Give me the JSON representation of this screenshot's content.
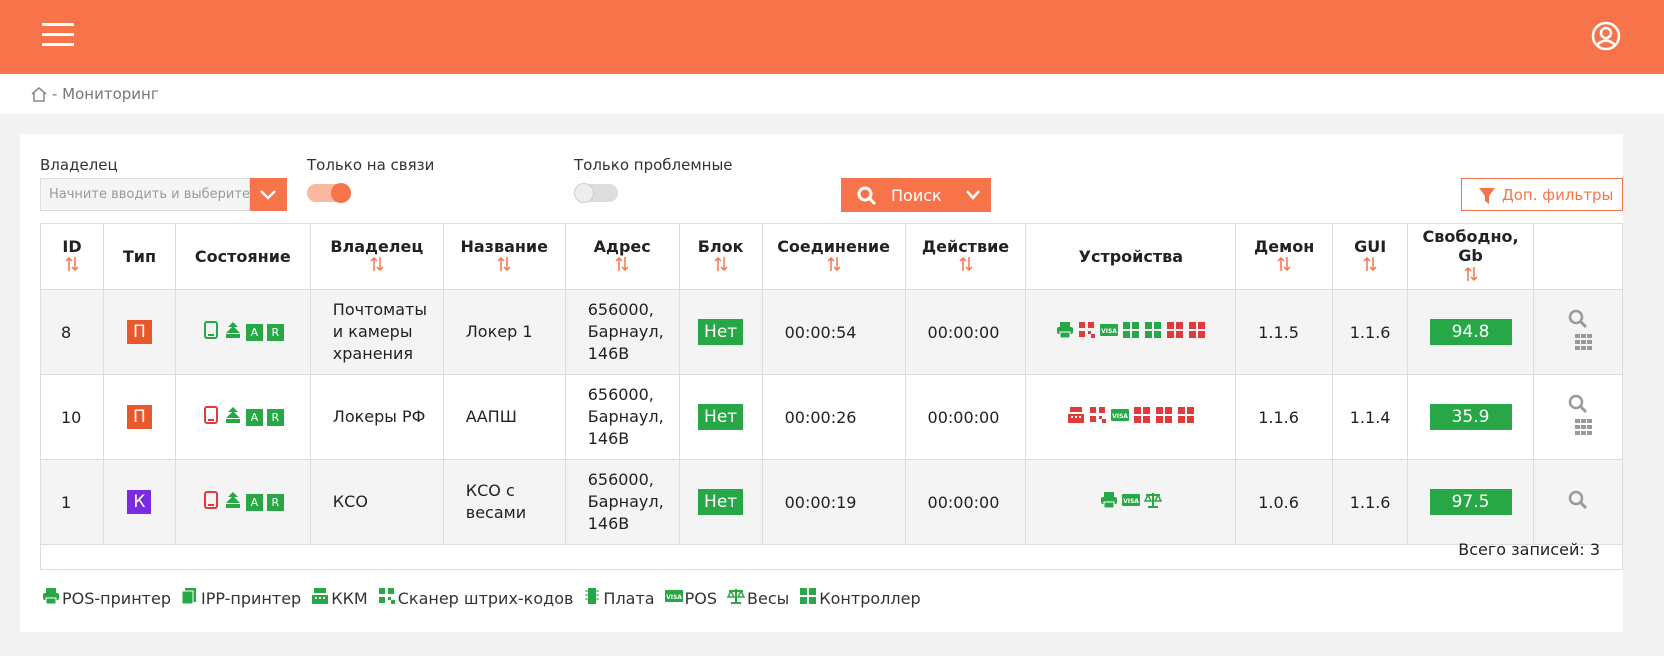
{
  "header": {
    "breadcrumb": "- Мониторинг"
  },
  "filters": {
    "owner_label": "Владелец",
    "owner_placeholder": "Начните вводить и выберите",
    "online_label": "Только на связи",
    "problem_label": "Только проблемные",
    "search_button": "Поиск",
    "more_filters_button": "Доп. фильтры"
  },
  "table": {
    "columns": [
      {
        "label": "ID",
        "sortable": true
      },
      {
        "label": "Тип",
        "sortable": false
      },
      {
        "label": "Состояние",
        "sortable": false
      },
      {
        "label": "Владелец",
        "sortable": true
      },
      {
        "label": "Название",
        "sortable": true
      },
      {
        "label": "Адрес",
        "sortable": true
      },
      {
        "label": "Блок",
        "sortable": true
      },
      {
        "label": "Соединение",
        "sortable": true
      },
      {
        "label": "Действие",
        "sortable": true
      },
      {
        "label": "Устройства",
        "sortable": false
      },
      {
        "label": "Демон",
        "sortable": true
      },
      {
        "label": "GUI",
        "sortable": true
      },
      {
        "label": "Свободно, Gb",
        "sortable": true
      }
    ],
    "rows": [
      {
        "id": "8",
        "type": "П",
        "type_color": "#e8582a",
        "status_color": "#27a745",
        "badges": [
          "A",
          "R"
        ],
        "owner": "Почтоматы и камеры хранения",
        "name": "Локер 1",
        "address": "656000, Барнаул, 146В",
        "block": "Нет",
        "connection": "00:00:54",
        "action": "00:00:00",
        "device_colors": [
          "#27a745",
          "#e03a3a",
          "#27a745",
          "#27a745",
          "#27a745",
          "#e03a3a",
          "#e03a3a"
        ],
        "daemon": "1.1.5",
        "gui": "1.1.6",
        "free": "94.8"
      },
      {
        "id": "10",
        "type": "П",
        "type_color": "#e8582a",
        "status_color": "#e03a3a",
        "badges": [
          "A",
          "R"
        ],
        "owner": "Локеры РФ",
        "name": "ААПШ",
        "address": "656000, Барнаул, 146В",
        "block": "Нет",
        "connection": "00:00:26",
        "action": "00:00:00",
        "device_colors": [
          "#e03a3a",
          "#e03a3a",
          "#27a745",
          "#e03a3a",
          "#e03a3a",
          "#e03a3a"
        ],
        "daemon": "1.1.6",
        "gui": "1.1.4",
        "free": "35.9"
      },
      {
        "id": "1",
        "type": "К",
        "type_color": "#7b2be2",
        "status_color": "#e03a3a",
        "badges": [
          "A",
          "R"
        ],
        "owner": "КСО",
        "name": "КСО с весами",
        "address": "656000, Барнаул, 146В",
        "block": "Нет",
        "connection": "00:00:19",
        "action": "00:00:00",
        "device_colors": [
          "#27a745",
          "#27a745",
          "#27a745"
        ],
        "daemon": "1.0.6",
        "gui": "1.1.6",
        "free": "97.5"
      }
    ],
    "footer": "Всего записей: 3"
  },
  "legend": [
    "POS-принтер",
    "IPP-принтер",
    "ККМ",
    "Сканер штрих-кодов",
    "Плата",
    "POS",
    "Весы",
    "Контроллер"
  ]
}
